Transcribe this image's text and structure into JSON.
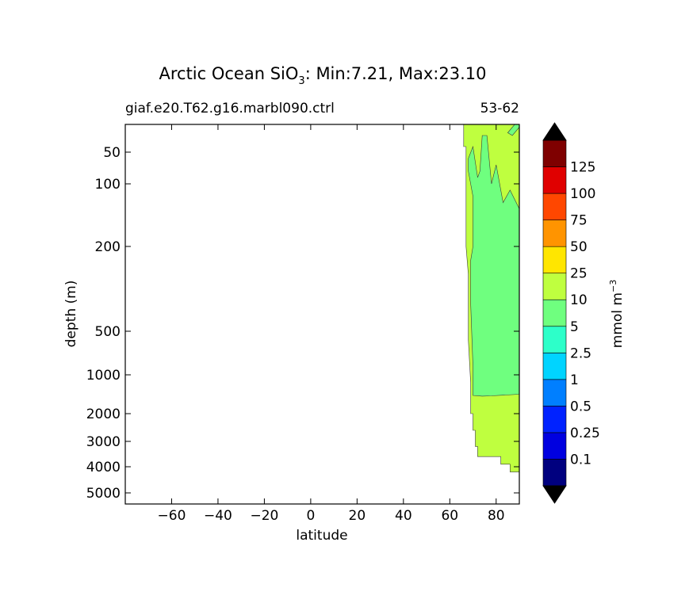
{
  "chart_data": {
    "type": "contour",
    "title": {
      "prefix": "Arctic Ocean SiO",
      "subscript": "3",
      "suffix": ": Min:7.21, Max:23.10"
    },
    "subtitle_left": "giaf.e20.T62.g16.marbl090.ctrl",
    "subtitle_right": "53-62",
    "xlabel": "latitude",
    "ylabel": "depth (m)",
    "xlim": [
      -80,
      90
    ],
    "ylim": [
      0,
      5500
    ],
    "y_scale": "sqrt-like (nonlinear depth axis)",
    "x_ticks": [
      {
        "value": -60,
        "label": "−60"
      },
      {
        "value": -40,
        "label": "−40"
      },
      {
        "value": -20,
        "label": "−20"
      },
      {
        "value": 0,
        "label": "0"
      },
      {
        "value": 20,
        "label": "20"
      },
      {
        "value": 40,
        "label": "40"
      },
      {
        "value": 60,
        "label": "60"
      },
      {
        "value": 80,
        "label": "80"
      }
    ],
    "y_ticks": [
      {
        "value": 50,
        "label": "50"
      },
      {
        "value": 100,
        "label": "100"
      },
      {
        "value": 200,
        "label": "200"
      },
      {
        "value": 500,
        "label": "500"
      },
      {
        "value": 1000,
        "label": "1000"
      },
      {
        "value": 2000,
        "label": "2000"
      },
      {
        "value": 3000,
        "label": "3000"
      },
      {
        "value": 4000,
        "label": "4000"
      },
      {
        "value": 5000,
        "label": "5000"
      }
    ],
    "data_regions": [
      {
        "level_range": [
          10,
          25
        ],
        "color": "#bfff3f",
        "outline": [
          [
            66,
            0
          ],
          [
            90,
            0
          ],
          [
            90,
            4200
          ],
          [
            86,
            4200
          ],
          [
            86,
            3900
          ],
          [
            82,
            3900
          ],
          [
            82,
            3600
          ],
          [
            72,
            3600
          ],
          [
            72,
            3200
          ],
          [
            71,
            3200
          ],
          [
            71,
            2600
          ],
          [
            70,
            2600
          ],
          [
            70,
            2000
          ],
          [
            69,
            2000
          ],
          [
            69,
            1200
          ],
          [
            68,
            600
          ],
          [
            68,
            300
          ],
          [
            67,
            200
          ],
          [
            67,
            40
          ],
          [
            66,
            40
          ]
        ]
      },
      {
        "level_range": [
          5,
          10
        ],
        "color": "#6fff7f",
        "outline": [
          [
            68,
            60
          ],
          [
            70,
            40
          ],
          [
            72,
            90
          ],
          [
            73,
            80
          ],
          [
            74,
            20
          ],
          [
            76,
            20
          ],
          [
            78,
            100
          ],
          [
            80,
            70
          ],
          [
            83,
            130
          ],
          [
            86,
            110
          ],
          [
            90,
            140
          ],
          [
            90,
            1500
          ],
          [
            84,
            1520
          ],
          [
            78,
            1540
          ],
          [
            74,
            1550
          ],
          [
            70,
            1530
          ],
          [
            70,
            900
          ],
          [
            69,
            400
          ],
          [
            69,
            250
          ],
          [
            70,
            200
          ],
          [
            70,
            120
          ],
          [
            69,
            100
          ],
          [
            68,
            80
          ]
        ]
      },
      {
        "level_range": [
          5,
          10
        ],
        "color": "#6fff7f",
        "outline": [
          [
            85,
            15
          ],
          [
            88,
            0
          ],
          [
            90,
            0
          ],
          [
            90,
            5
          ],
          [
            87,
            20
          ]
        ]
      }
    ],
    "colorbar": {
      "label": "mmol m",
      "label_superscript": "−3",
      "extend": "both",
      "min_color": "#000000",
      "max_color": "#000000",
      "bands": [
        {
          "color": "#00007f"
        },
        {
          "color": "#0000e0"
        },
        {
          "color": "#0022ff"
        },
        {
          "color": "#007fff"
        },
        {
          "color": "#00d4ff"
        },
        {
          "color": "#2dffc9"
        },
        {
          "color": "#6fff7f"
        },
        {
          "color": "#bfff3f"
        },
        {
          "color": "#ffe600"
        },
        {
          "color": "#ff9400"
        },
        {
          "color": "#ff4700"
        },
        {
          "color": "#e00000"
        },
        {
          "color": "#7f0000"
        }
      ],
      "boundary_labels": [
        "0.1",
        "0.25",
        "0.5",
        "1",
        "2.5",
        "5",
        "10",
        "25",
        "50",
        "75",
        "100",
        "125"
      ]
    }
  }
}
